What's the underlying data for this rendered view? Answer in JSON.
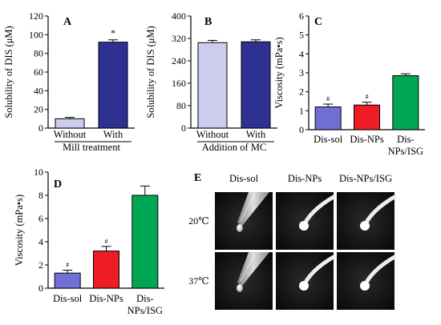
{
  "chart_data": [
    {
      "panel": "A",
      "type": "bar",
      "ylabel": "Solubility of DIS (μM)",
      "ylim": [
        0,
        120
      ],
      "yticks": [
        0,
        20,
        40,
        60,
        80,
        100,
        120
      ],
      "categories": [
        "Without",
        "With"
      ],
      "group_label": "Mill treatment",
      "values": [
        10,
        92
      ],
      "errors": [
        1.5,
        2.5
      ],
      "colors": [
        "#ccccee",
        "#2e3192"
      ],
      "marks": [
        "",
        "*"
      ]
    },
    {
      "panel": "B",
      "type": "bar",
      "ylabel": "Solubility of DIS (μM)",
      "ylim": [
        0,
        400
      ],
      "yticks": [
        0,
        80,
        160,
        240,
        320,
        400
      ],
      "categories": [
        "Without",
        "With"
      ],
      "group_label": "Addition of MC",
      "values": [
        305,
        308
      ],
      "errors": [
        8,
        7
      ],
      "colors": [
        "#ccccee",
        "#2e3192"
      ],
      "marks": [
        "",
        ""
      ]
    },
    {
      "panel": "C",
      "type": "bar",
      "ylabel": "Viscosity (mPa•s)",
      "ylim": [
        0,
        6
      ],
      "yticks": [
        0,
        1,
        2,
        3,
        4,
        5,
        6
      ],
      "categories": [
        "Dis-sol",
        "Dis-NPs",
        "Dis-NPs/ISG"
      ],
      "values": [
        1.2,
        1.3,
        2.85
      ],
      "errors": [
        0.15,
        0.15,
        0.1
      ],
      "colors": [
        "#6f6fd6",
        "#ee1c24",
        "#00a651"
      ],
      "marks": [
        "#",
        "#",
        ""
      ]
    },
    {
      "panel": "D",
      "type": "bar",
      "ylabel": "Viscosity (mPa•s)",
      "ylim": [
        0,
        10
      ],
      "yticks": [
        0,
        2,
        4,
        6,
        8,
        10
      ],
      "categories": [
        "Dis-sol",
        "Dis-NPs",
        "Dis-NPs/ISG"
      ],
      "values": [
        1.3,
        3.2,
        8.0
      ],
      "errors": [
        0.25,
        0.4,
        0.8
      ],
      "colors": [
        "#6f6fd6",
        "#ee1c24",
        "#00a651"
      ],
      "marks": [
        "#",
        "#",
        ""
      ]
    }
  ],
  "photo_panel": {
    "panel": "E",
    "columns": [
      "Dis-sol",
      "Dis-NPs",
      "Dis-NPs/ISG"
    ],
    "rows": [
      "20℃",
      "37℃"
    ]
  }
}
